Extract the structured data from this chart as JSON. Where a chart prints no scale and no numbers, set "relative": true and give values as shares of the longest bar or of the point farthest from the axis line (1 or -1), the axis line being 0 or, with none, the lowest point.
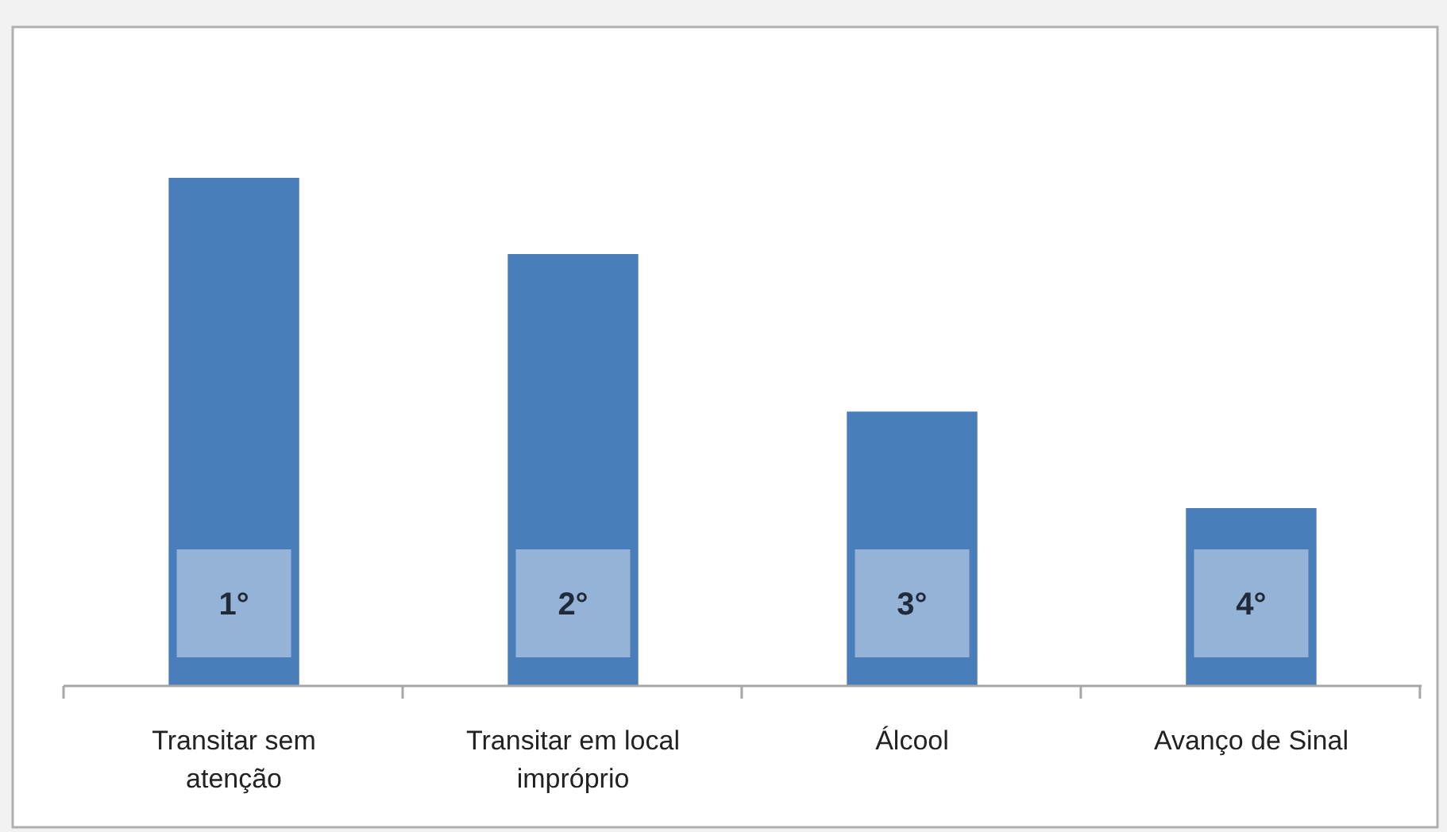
{
  "chart_data": {
    "type": "bar",
    "relative": true,
    "categories": [
      "Transitar sem atenção",
      "Transitar em local impróprio",
      "Álcool",
      "Avanço de Sinal"
    ],
    "values": [
      1,
      0.85,
      0.54,
      0.35
    ],
    "color": "#4a7ebb",
    "annotations": [
      "1°",
      "2°",
      "3°",
      "4°"
    ]
  }
}
